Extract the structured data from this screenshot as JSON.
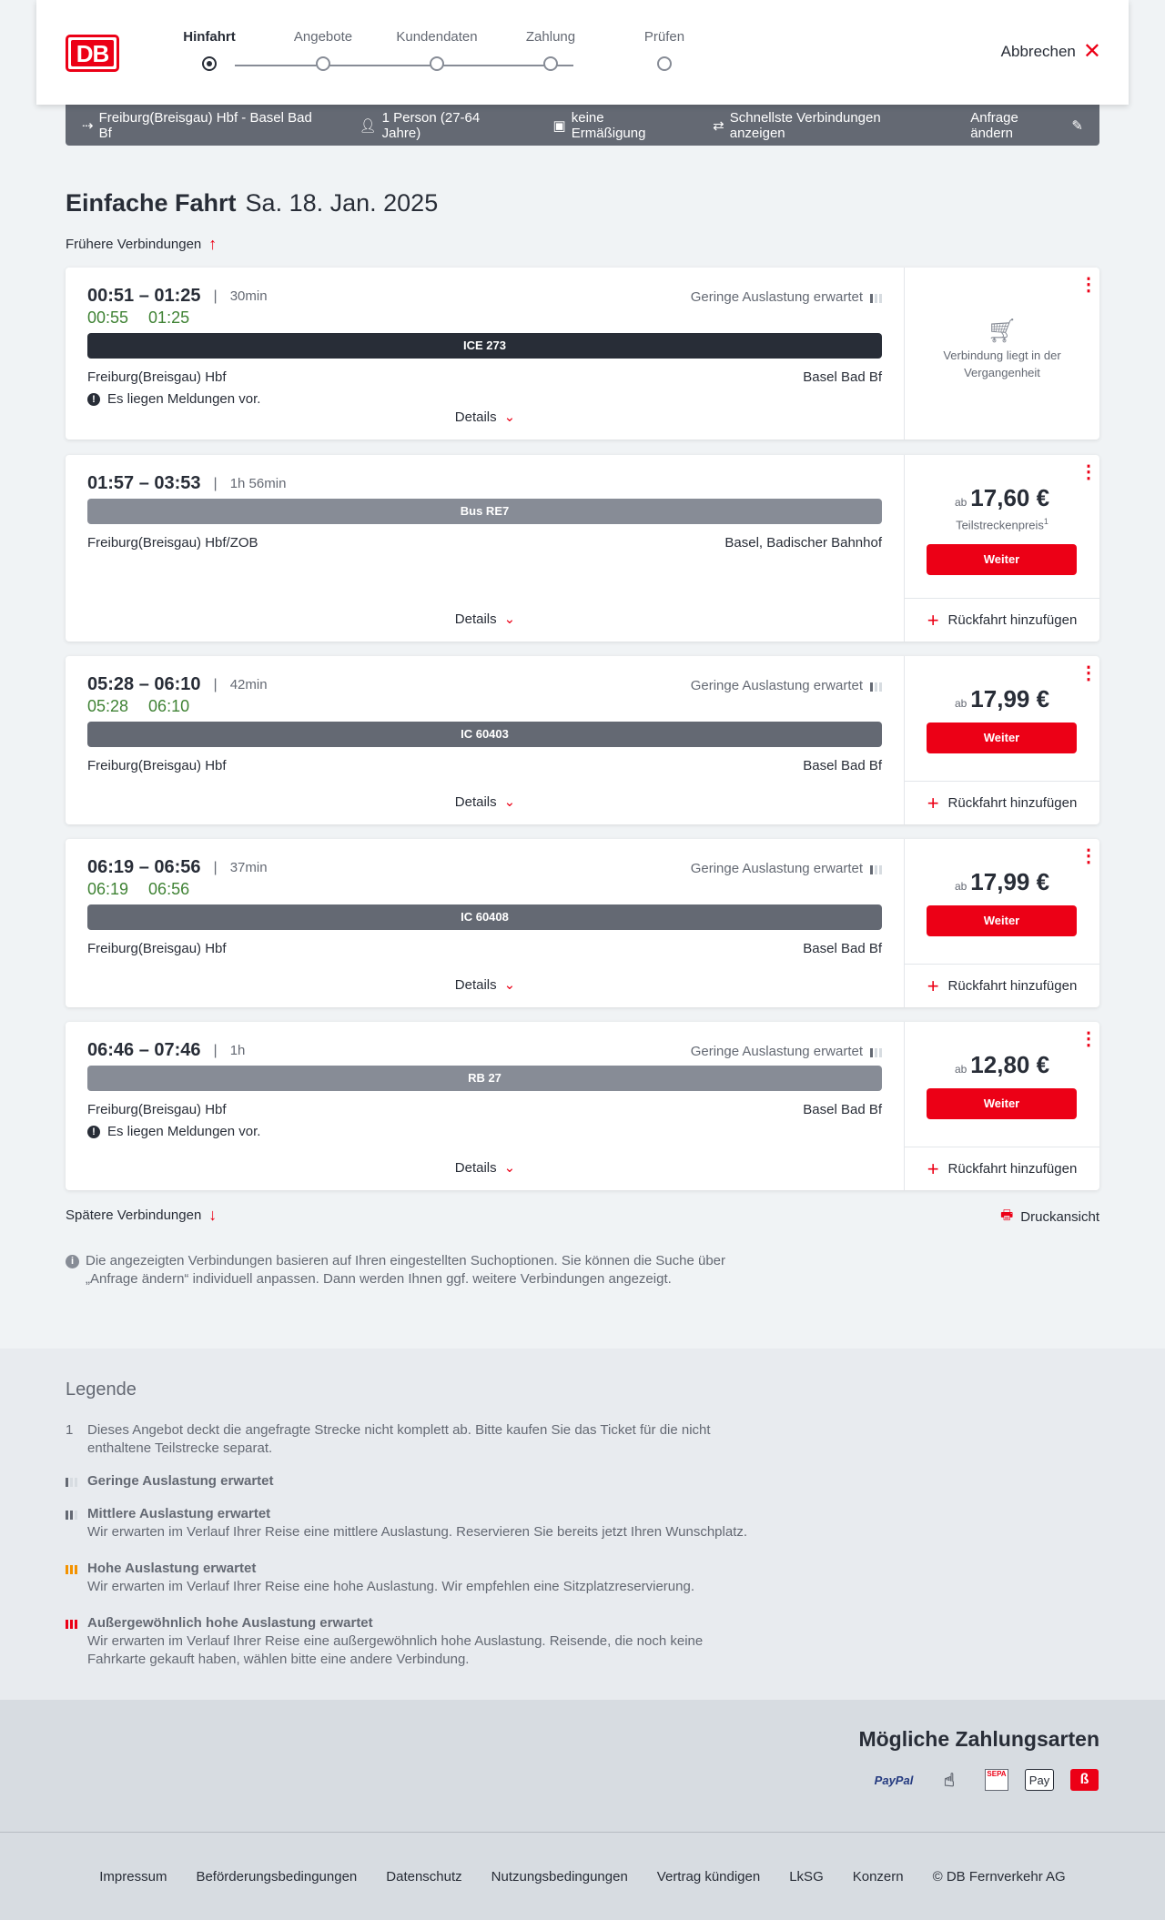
{
  "header": {
    "logo": "DB",
    "steps": [
      "Hinfahrt",
      "Angebote",
      "Kundendaten",
      "Zahlung",
      "Prüfen"
    ],
    "active_step": 0,
    "cancel": "Abbrechen"
  },
  "summary": {
    "route": "Freiburg(Breisgau) Hbf - Basel Bad Bf",
    "travellers": "1 Person (27-64 Jahre)",
    "discount": "keine Ermäßigung",
    "option": "Schnellste Verbindungen anzeigen",
    "edit": "Anfrage ändern"
  },
  "title": {
    "trip": "Einfache Fahrt",
    "date": "Sa. 18. Jan. 2025"
  },
  "earlier": "Frühere Verbindungen",
  "later": "Spätere Verbindungen",
  "print": "Druckansicht",
  "colors": {
    "accent": "#ec0016",
    "realtime": "#408335"
  },
  "connections": [
    {
      "time": "00:51 – 01:25",
      "duration": "30min",
      "realtime": [
        "00:55",
        "01:25"
      ],
      "occupancy": "Geringe Auslastung erwartet",
      "train": "ICE 273",
      "train_color": "#282d37",
      "from": "Freiburg(Breisgau) Hbf",
      "to": "Basel Bad Bf",
      "message": "Es liegen Meldungen vor.",
      "details": "Details",
      "past": "Verbindung liegt in der Vergangenheit"
    },
    {
      "time": "01:57 – 03:53",
      "duration": "1h 56min",
      "train": "Bus RE7",
      "train_color": "#878c96",
      "from": "Freiburg(Breisgau) Hbf/ZOB",
      "to": "Basel, Badischer Bahnhof",
      "details": "Details",
      "price_prefix": "ab",
      "price": "17,60 €",
      "price_note": "Teilstreckenpreis",
      "price_footnote": "1",
      "button": "Weiter",
      "return": "Rückfahrt hinzufügen"
    },
    {
      "time": "05:28 – 06:10",
      "duration": "42min",
      "realtime": [
        "05:28",
        "06:10"
      ],
      "occupancy": "Geringe Auslastung erwartet",
      "train": "IC 60403",
      "train_color": "#646973",
      "from": "Freiburg(Breisgau) Hbf",
      "to": "Basel Bad Bf",
      "details": "Details",
      "price_prefix": "ab",
      "price": "17,99 €",
      "button": "Weiter",
      "return": "Rückfahrt hinzufügen"
    },
    {
      "time": "06:19 – 06:56",
      "duration": "37min",
      "realtime": [
        "06:19",
        "06:56"
      ],
      "occupancy": "Geringe Auslastung erwartet",
      "train": "IC 60408",
      "train_color": "#646973",
      "from": "Freiburg(Breisgau) Hbf",
      "to": "Basel Bad Bf",
      "details": "Details",
      "price_prefix": "ab",
      "price": "17,99 €",
      "button": "Weiter",
      "return": "Rückfahrt hinzufügen"
    },
    {
      "time": "06:46 – 07:46",
      "duration": "1h",
      "occupancy": "Geringe Auslastung erwartet",
      "train": "RB 27",
      "train_color": "#878c96",
      "from": "Freiburg(Breisgau) Hbf",
      "to": "Basel Bad Bf",
      "message": "Es liegen Meldungen vor.",
      "details": "Details",
      "price_prefix": "ab",
      "price": "12,80 €",
      "button": "Weiter",
      "return": "Rückfahrt hinzufügen"
    }
  ],
  "info": "Die angezeigten Verbindungen basieren auf Ihren eingestellten Suchoptionen. Sie können die Suche über „Anfrage ändern“ individuell anpassen. Dann werden Ihnen ggf. weitere Verbindungen angezeigt.",
  "legend": {
    "title": "Legende",
    "footnote_number": "1",
    "footnote": "Dieses Angebot deckt die angefragte Strecke nicht komplett ab. Bitte kaufen Sie das Ticket für die nicht enthaltene Teilstrecke separat.",
    "items": [
      {
        "title": "Geringe Auslastung erwartet",
        "text": "",
        "level": 1,
        "color": "#646973"
      },
      {
        "title": "Mittlere Auslastung erwartet",
        "text": "Wir erwarten im Verlauf Ihrer Reise eine mittlere Auslastung. Reservieren Sie bereits jetzt Ihren Wunschplatz.",
        "level": 2,
        "color": "#646973"
      },
      {
        "title": "Hohe Auslastung erwartet",
        "text": "Wir erwarten im Verlauf Ihrer Reise eine hohe Auslastung. Wir empfehlen eine Sitzplatzreservierung.",
        "level": 3,
        "color": "#f39200"
      },
      {
        "title": "Außergewöhnlich hohe Auslastung erwartet",
        "text": "Wir erwarten im Verlauf Ihrer Reise eine außergewöhnlich hohe Auslastung. Reisende, die noch keine Fahrkarte gekauft haben, wählen bitte eine andere Verbindung.",
        "level": 4,
        "color": "#ec0016"
      }
    ]
  },
  "payment": {
    "title": "Mögliche Zahlungsarten",
    "methods": [
      "PayPal",
      "contactless-card-icon",
      "SEPA",
      "Pay",
      "db-bonus-icon"
    ]
  },
  "footer": {
    "links": [
      "Impressum",
      "Beförderungsbedingungen",
      "Datenschutz",
      "Nutzungsbedingungen",
      "Vertrag kündigen",
      "LkSG",
      "Konzern",
      "© DB Fernverkehr AG"
    ]
  }
}
